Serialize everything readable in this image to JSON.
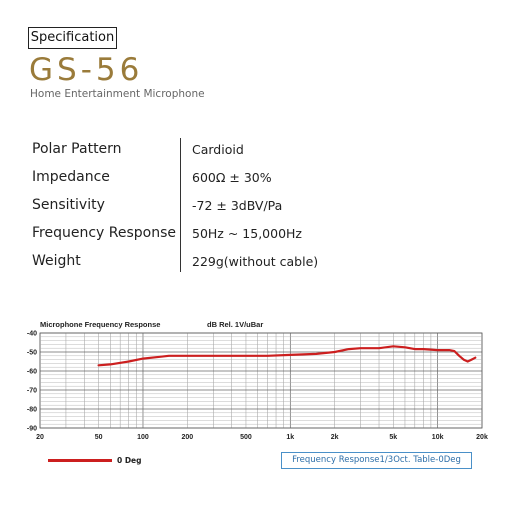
{
  "header": {
    "badge": "Specification",
    "model": "GS-56",
    "subtitle": "Home Entertainment Microphone"
  },
  "specs": [
    {
      "label": "Polar Pattern",
      "value": "Cardioid"
    },
    {
      "label": "Impedance",
      "value": "600Ω ± 30%"
    },
    {
      "label": "Sensitivity",
      "value": "-72 ± 3dBV/Pa"
    },
    {
      "label": "Frequency Response",
      "value": "50Hz ~ 15,000Hz"
    },
    {
      "label": "Weight",
      "value": "229g(without cable)"
    }
  ],
  "chart_data": {
    "type": "line",
    "title": "Microphone Frequency Response",
    "ylabel": "dB Rel. 1V/uBar",
    "x_scale": "log",
    "xlim": [
      20,
      20000
    ],
    "ylim": [
      -90,
      -40
    ],
    "x_ticks": [
      20,
      50,
      100,
      200,
      500,
      1000,
      2000,
      5000,
      10000,
      20000
    ],
    "x_tick_labels": [
      "20",
      "50",
      "100",
      "200",
      "500",
      "1k",
      "2k",
      "5k",
      "10k",
      "20k"
    ],
    "y_ticks": [
      -40,
      -50,
      -60,
      -70,
      -80,
      -90
    ],
    "y_tick_labels": [
      "-40",
      "-50",
      "-60",
      "-70",
      "-80",
      "-90"
    ],
    "grid": true,
    "series": [
      {
        "name": "0 Deg",
        "color": "#cc1f1f",
        "x": [
          50,
          60,
          80,
          100,
          130,
          150,
          200,
          300,
          500,
          700,
          1000,
          1500,
          2000,
          2500,
          3000,
          4000,
          5000,
          6000,
          7000,
          8000,
          10000,
          12000,
          13000,
          14000,
          15000,
          16000,
          17000,
          18000
        ],
        "y": [
          -57,
          -56.5,
          -55,
          -53.5,
          -52.5,
          -52,
          -52,
          -52,
          -52,
          -52,
          -51.5,
          -51,
          -50,
          -48.5,
          -48,
          -48,
          -47,
          -47.5,
          -48.5,
          -48.5,
          -49,
          -49,
          -49.5,
          -52,
          -54,
          -55,
          -54,
          -53
        ]
      }
    ],
    "legend": "bottom-left",
    "table_label": "Frequency Response1/3Oct. Table-0Deg"
  }
}
